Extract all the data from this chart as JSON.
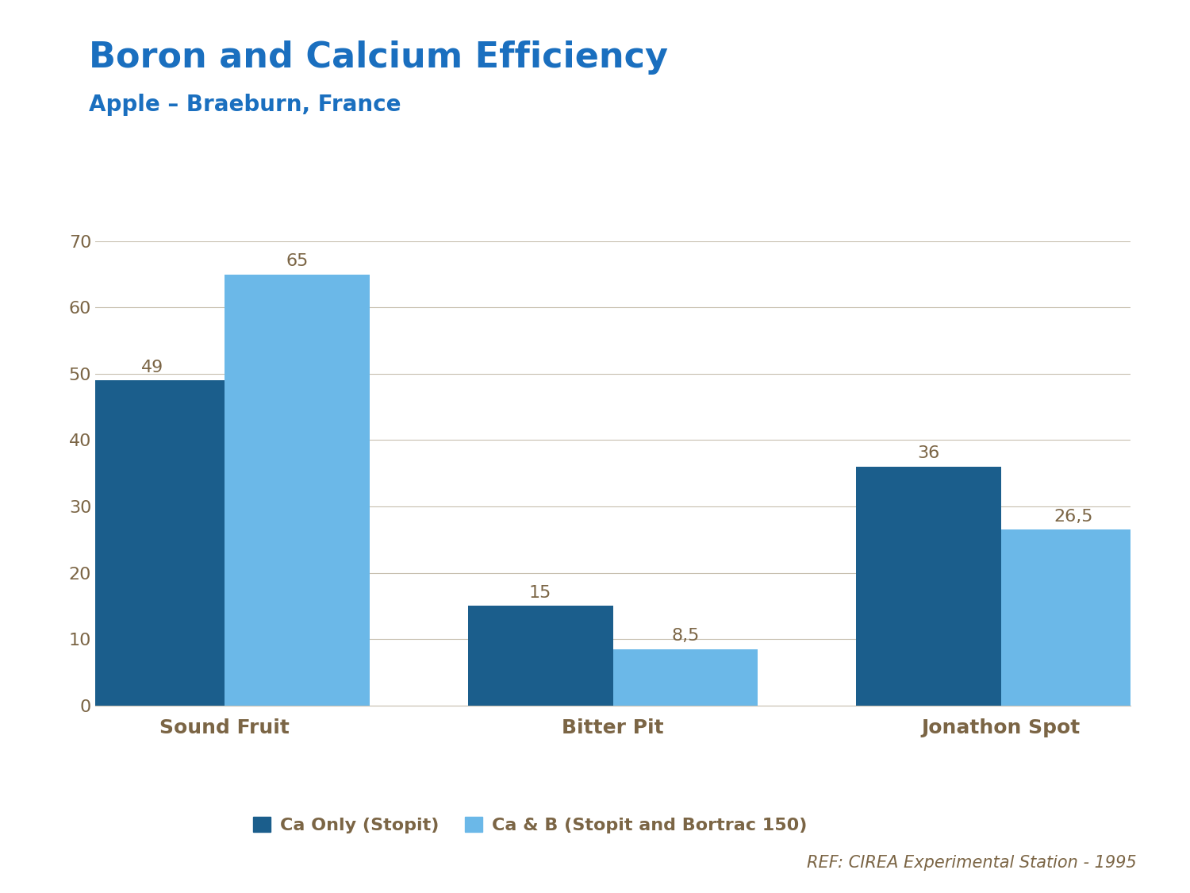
{
  "title": "Boron and Calcium Efficiency",
  "subtitle": "Apple – Braeburn, France",
  "title_color": "#1A6FBF",
  "subtitle_color": "#1A6FBF",
  "title_fontsize": 32,
  "subtitle_fontsize": 20,
  "categories": [
    "Sound Fruit",
    "Bitter Pit",
    "Jonathon Spot"
  ],
  "series1_label": "Ca Only (Stopit)",
  "series2_label": "Ca & B (Stopit and Bortrac 150)",
  "series1_values": [
    49,
    15,
    36
  ],
  "series2_values": [
    65,
    8.5,
    26.5
  ],
  "series1_color": "#1B5E8C",
  "series2_color": "#6BB8E8",
  "bar_label_color": "#7B6545",
  "bar_label_fontsize": 16,
  "tick_label_color": "#7B6545",
  "tick_label_fontsize": 16,
  "category_label_color": "#7B6545",
  "category_label_fontsize": 18,
  "legend_label_color": "#7B6545",
  "legend_label_fontsize": 16,
  "ref_text": "REF: CIREA Experimental Station - 1995",
  "ref_color": "#7B6545",
  "ref_fontsize": 15,
  "ylim": [
    0,
    70
  ],
  "yticks": [
    0,
    10,
    20,
    30,
    40,
    50,
    60,
    70
  ],
  "grid_color": "#C8C0B0",
  "axis_color": "#C8C0B0",
  "background_color": "#FFFFFF",
  "bar_width": 0.28,
  "group_positions": [
    0.25,
    1.0,
    1.75
  ]
}
